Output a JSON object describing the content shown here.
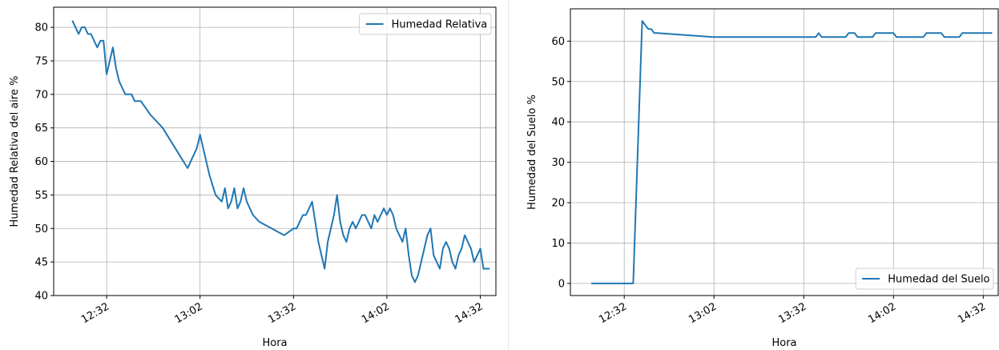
{
  "chart_data": [
    {
      "type": "line",
      "title": "",
      "xlabel": "Hora",
      "ylabel": "Humedad Relativa del aire %",
      "ylim": [
        40,
        83
      ],
      "xlim": [
        "12:15",
        "14:37"
      ],
      "xticks": [
        "12:32",
        "13:02",
        "13:32",
        "14:02",
        "14:32"
      ],
      "yticks": [
        40,
        45,
        50,
        55,
        60,
        65,
        70,
        75,
        80
      ],
      "grid": true,
      "legend_position": "upper-right",
      "series": [
        {
          "name": "Humedad Relativa",
          "color": "#1f77b4",
          "x": [
            "12:21",
            "12:22",
            "12:23",
            "12:24",
            "12:25",
            "12:26",
            "12:27",
            "12:28",
            "12:29",
            "12:30",
            "12:31",
            "12:32",
            "12:33",
            "12:34",
            "12:35",
            "12:36",
            "12:37",
            "12:38",
            "12:39",
            "12:40",
            "12:41",
            "12:43",
            "12:46",
            "12:50",
            "12:54",
            "12:58",
            "13:00",
            "13:01",
            "13:02",
            "13:03",
            "13:05",
            "13:07",
            "13:09",
            "13:10",
            "13:11",
            "13:12",
            "13:13",
            "13:14",
            "13:15",
            "13:16",
            "13:17",
            "13:18",
            "13:19",
            "13:21",
            "13:25",
            "13:29",
            "13:32",
            "13:33",
            "13:34",
            "13:35",
            "13:36",
            "13:37",
            "13:38",
            "13:39",
            "13:40",
            "13:41",
            "13:42",
            "13:43",
            "13:44",
            "13:45",
            "13:46",
            "13:47",
            "13:48",
            "13:49",
            "13:50",
            "13:51",
            "13:52",
            "13:53",
            "13:54",
            "13:55",
            "13:56",
            "13:57",
            "13:58",
            "13:59",
            "14:00",
            "14:01",
            "14:02",
            "14:03",
            "14:04",
            "14:05",
            "14:06",
            "14:07",
            "14:08",
            "14:09",
            "14:10",
            "14:11",
            "14:12",
            "14:13",
            "14:14",
            "14:15",
            "14:16",
            "14:17",
            "14:18",
            "14:19",
            "14:20",
            "14:21",
            "14:22",
            "14:23",
            "14:24",
            "14:25",
            "14:26",
            "14:27",
            "14:28",
            "14:29",
            "14:30",
            "14:31",
            "14:32",
            "14:33",
            "14:34",
            "14:35"
          ],
          "values": [
            81,
            80,
            79,
            80,
            80,
            79,
            79,
            78,
            77,
            78,
            78,
            73,
            75,
            77,
            74,
            72,
            71,
            70,
            70,
            70,
            69,
            69,
            67,
            65,
            62,
            59,
            61,
            62,
            64,
            62,
            58,
            55,
            54,
            56,
            53,
            54,
            56,
            53,
            54,
            56,
            54,
            53,
            52,
            51,
            50,
            49,
            50,
            50,
            51,
            52,
            52,
            53,
            54,
            51,
            48,
            46,
            44,
            48,
            50,
            52,
            55,
            51,
            49,
            48,
            50,
            51,
            50,
            51,
            52,
            52,
            51,
            50,
            52,
            51,
            52,
            53,
            52,
            53,
            52,
            50,
            49,
            48,
            50,
            46,
            43,
            42,
            43,
            45,
            47,
            49,
            50,
            46,
            45,
            44,
            47,
            48,
            47,
            45,
            44,
            46,
            47,
            49,
            48,
            47,
            45,
            46,
            47,
            44,
            44,
            44
          ]
        }
      ]
    },
    {
      "type": "line",
      "title": "",
      "xlabel": "Hora",
      "ylabel": "Humedad del Suelo %",
      "ylim": [
        -3,
        68
      ],
      "xlim": [
        "12:14",
        "14:37"
      ],
      "xticks": [
        "12:32",
        "13:02",
        "13:32",
        "14:02",
        "14:32"
      ],
      "yticks": [
        0,
        10,
        20,
        30,
        40,
        50,
        60
      ],
      "grid": true,
      "legend_position": "lower-right",
      "series": [
        {
          "name": "Humedad del Suelo",
          "color": "#1f77b4",
          "x": [
            "12:21",
            "12:35",
            "12:38",
            "12:39",
            "12:40",
            "12:41",
            "12:42",
            "12:43",
            "13:02",
            "13:28",
            "13:36",
            "13:37",
            "13:38",
            "13:43",
            "13:46",
            "13:47",
            "13:49",
            "13:50",
            "13:55",
            "13:56",
            "13:57",
            "14:02",
            "14:03",
            "14:07",
            "14:12",
            "14:13",
            "14:18",
            "14:19",
            "14:22",
            "14:24",
            "14:25",
            "14:35"
          ],
          "values": [
            0,
            0,
            65,
            64,
            63,
            63,
            62,
            62,
            61,
            61,
            61,
            62,
            61,
            61,
            61,
            62,
            62,
            61,
            61,
            62,
            62,
            62,
            61,
            61,
            61,
            62,
            62,
            61,
            61,
            61,
            62,
            62
          ]
        }
      ]
    }
  ]
}
